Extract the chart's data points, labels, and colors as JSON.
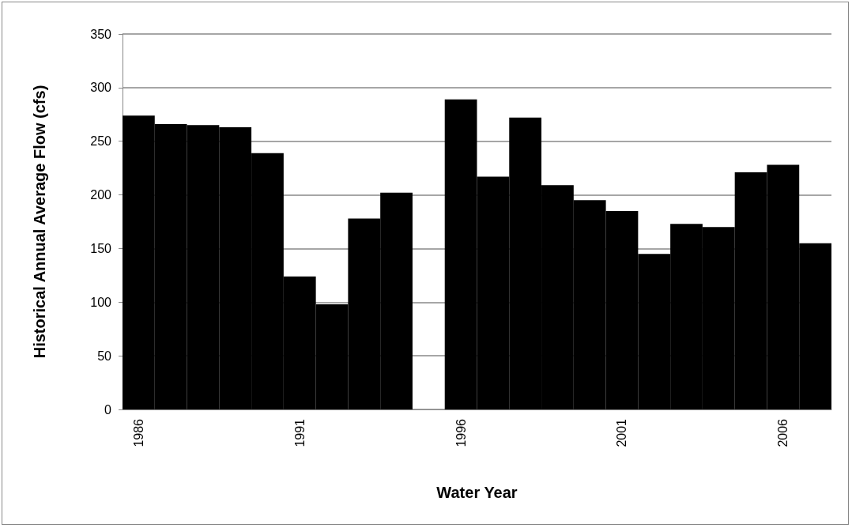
{
  "chart_data": {
    "type": "bar",
    "xlabel": "Water Year",
    "ylabel": "Historical Annual Average Flow (cfs)",
    "categories": [
      "1986",
      null,
      null,
      null,
      null,
      "1991",
      null,
      null,
      null,
      null,
      "1996",
      null,
      null,
      null,
      null,
      "2001",
      null,
      null,
      null,
      null,
      "2006",
      null
    ],
    "values": [
      274,
      266,
      265,
      263,
      239,
      124,
      98,
      178,
      202,
      null,
      289,
      217,
      272,
      209,
      195,
      185,
      145,
      173,
      170,
      221,
      228,
      155
    ],
    "color": "#000000",
    "ylim": [
      0,
      350
    ],
    "yticks": [
      0,
      50,
      100,
      150,
      200,
      250,
      300,
      350
    ],
    "grid": "y"
  }
}
